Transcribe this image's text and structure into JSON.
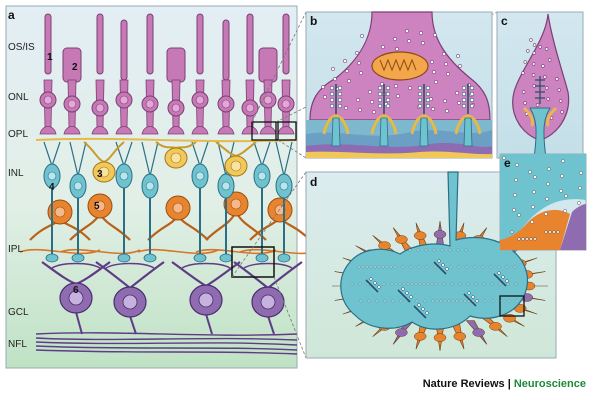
{
  "panels": {
    "a": "a",
    "b": "b",
    "c": "c",
    "d": "d",
    "e": "e"
  },
  "layers": [
    "OS/IS",
    "ONL",
    "OPL",
    "INL",
    "IPL",
    "GCL",
    "NFL"
  ],
  "cell_numbers": [
    "1",
    "2",
    "3",
    "4",
    "5",
    "6"
  ],
  "credit": {
    "journal": "Nature Reviews",
    "separator": "|",
    "section": "Neuroscience"
  },
  "colors": {
    "photoreceptor": "#c679b5",
    "bipolar": "#6fc3cf",
    "horizontal": "#f2c85a",
    "amacrine": "#e8832e",
    "ganglion": "#8f6bb0",
    "background_top": "#dbe9f2",
    "background_bottom": "#c9e5c9"
  }
}
